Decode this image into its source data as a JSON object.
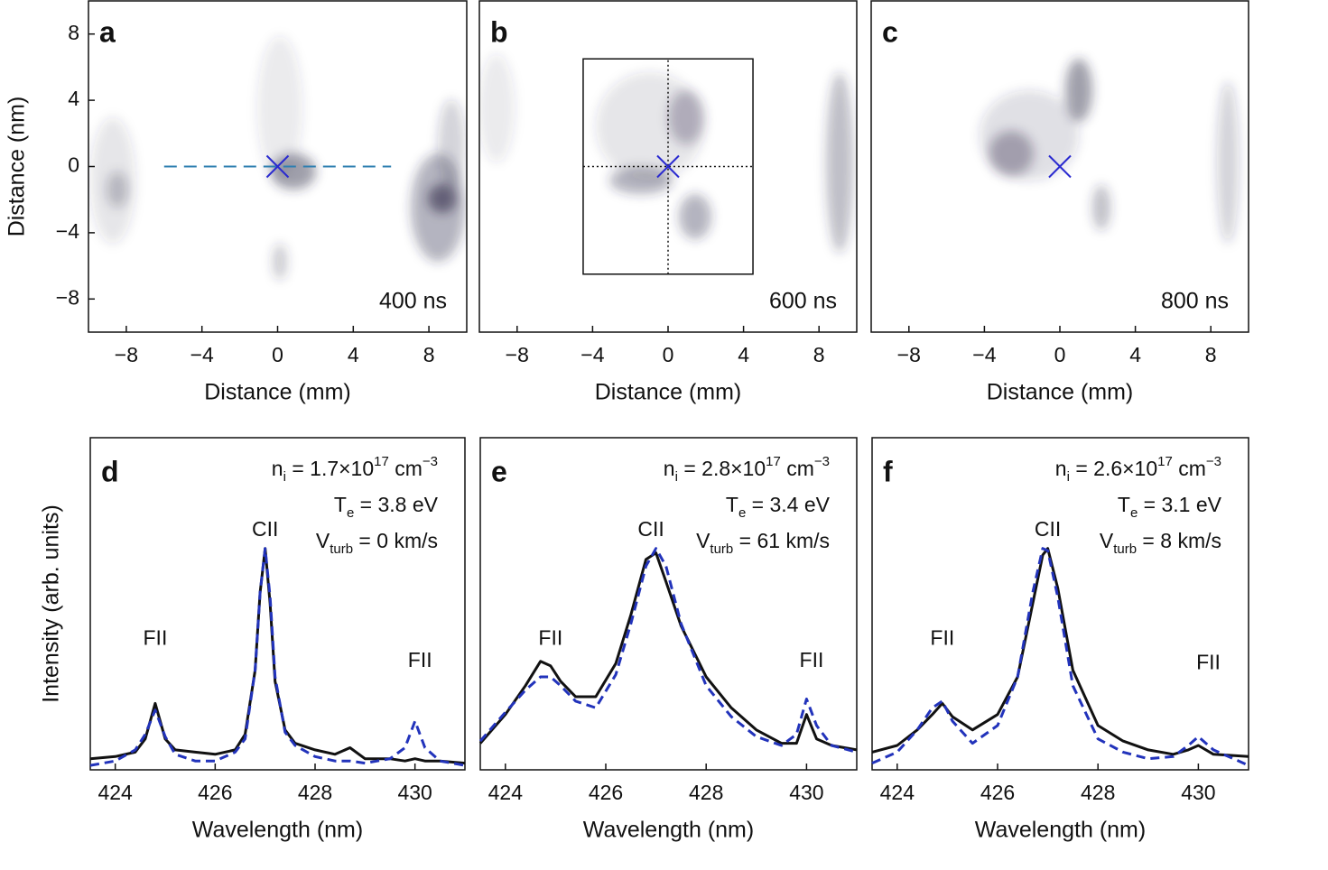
{
  "chart_data": [
    {
      "type": "image",
      "panel_label": "a",
      "time_label": "400 ns",
      "xlabel": "Distance (mm)",
      "ylabel": "Distance (nm)",
      "xlim": [
        -10,
        10
      ],
      "ylim": [
        -10,
        10
      ],
      "xticks": [
        {
          "value": -8,
          "label": "−8"
        },
        {
          "value": -4,
          "label": "−4"
        },
        0,
        4,
        8
      ],
      "yticks": [
        {
          "value": -8,
          "label": "−8"
        },
        {
          "value": -4,
          "label": "−4"
        },
        0,
        4,
        8
      ],
      "marker": {
        "x": 0,
        "y": 0,
        "color": "#2a2ad0"
      },
      "guide": {
        "x": [
          -6,
          6
        ],
        "y": [
          0,
          0
        ],
        "color": "#2f7fb0"
      }
    },
    {
      "type": "image",
      "panel_label": "b",
      "time_label": "600 ns",
      "xlabel": "Distance (mm)",
      "xlim": [
        -10,
        10
      ],
      "ylim": [
        -10,
        10
      ],
      "xticks": [
        {
          "value": -8,
          "label": "−8"
        },
        {
          "value": -4,
          "label": "−4"
        },
        0,
        4,
        8
      ],
      "marker": {
        "x": 0,
        "y": 0,
        "color": "#2a2ad0"
      },
      "box": {
        "x": [
          -4.5,
          4.5
        ],
        "y": [
          -6.5,
          6.5
        ]
      },
      "crosshair": true
    },
    {
      "type": "image",
      "panel_label": "c",
      "time_label": "800 ns",
      "xlabel": "Distance (mm)",
      "xlim": [
        -10,
        10
      ],
      "ylim": [
        -10,
        10
      ],
      "xticks": [
        {
          "value": -8,
          "label": "−8"
        },
        {
          "value": -4,
          "label": "−4"
        },
        0,
        4,
        8
      ],
      "marker": {
        "x": 0,
        "y": 0,
        "color": "#2a2ad0"
      }
    },
    {
      "type": "line",
      "panel_label": "d",
      "xlabel": "Wavelength (nm)",
      "ylabel": "Intensity (arb. units)",
      "xlim": [
        423.5,
        431
      ],
      "ylim": [
        0,
        1.5
      ],
      "xticks": [
        424,
        426,
        428,
        430
      ],
      "params": [
        [
          {
            "t": "n"
          },
          {
            "t": "i",
            "pos": "sub"
          },
          {
            "t": " = 1.7×10"
          },
          {
            "t": "17",
            "pos": "sup"
          },
          {
            "t": " cm"
          },
          {
            "t": "−3",
            "pos": "sup"
          }
        ],
        [
          {
            "t": "T"
          },
          {
            "t": "e",
            "pos": "sub"
          },
          {
            "t": " = 3.8 eV"
          }
        ],
        [
          {
            "t": "V"
          },
          {
            "t": "turb",
            "pos": "sub"
          },
          {
            "t": " = 0 km/s"
          }
        ]
      ],
      "peak_labels": [
        {
          "text": "FII",
          "x": 424.8,
          "y": 0.59
        },
        {
          "text": "CII",
          "x": 427.0,
          "y": 1.08
        },
        {
          "text": "FII",
          "x": 430.1,
          "y": 0.49
        }
      ],
      "x": [
        423.5,
        424,
        424.4,
        424.6,
        424.8,
        425,
        425.2,
        425.6,
        426,
        426.4,
        426.6,
        426.8,
        426.9,
        427,
        427.1,
        427.2,
        427.4,
        427.6,
        428,
        428.4,
        428.7,
        429,
        429.5,
        429.8,
        430,
        430.2,
        430.5,
        431
      ],
      "series": [
        {
          "color": "#111111",
          "values": [
            0.05,
            0.06,
            0.08,
            0.14,
            0.3,
            0.14,
            0.09,
            0.08,
            0.07,
            0.09,
            0.16,
            0.45,
            0.8,
            1.0,
            0.75,
            0.4,
            0.18,
            0.12,
            0.09,
            0.07,
            0.1,
            0.05,
            0.05,
            0.04,
            0.05,
            0.04,
            0.04,
            0.03
          ]
        },
        {
          "color": "#2233bb",
          "dashed": true,
          "values": [
            0.02,
            0.04,
            0.09,
            0.16,
            0.27,
            0.15,
            0.07,
            0.04,
            0.04,
            0.08,
            0.14,
            0.45,
            0.8,
            1.0,
            0.78,
            0.42,
            0.17,
            0.11,
            0.06,
            0.04,
            0.04,
            0.03,
            0.05,
            0.1,
            0.22,
            0.1,
            0.04,
            0.02
          ]
        }
      ]
    },
    {
      "type": "line",
      "panel_label": "e",
      "xlabel": "Wavelength (nm)",
      "xlim": [
        423.5,
        431
      ],
      "ylim": [
        0,
        1.5
      ],
      "xticks": [
        424,
        426,
        428,
        430
      ],
      "params": [
        [
          {
            "t": "n"
          },
          {
            "t": "i",
            "pos": "sub"
          },
          {
            "t": " = 2.8×10"
          },
          {
            "t": "17",
            "pos": "sup"
          },
          {
            "t": " cm"
          },
          {
            "t": "−3",
            "pos": "sup"
          }
        ],
        [
          {
            "t": "T"
          },
          {
            "t": "e",
            "pos": "sub"
          },
          {
            "t": " = 3.4 eV"
          }
        ],
        [
          {
            "t": "V"
          },
          {
            "t": "turb",
            "pos": "sub"
          },
          {
            "t": " = 61 km/s"
          }
        ]
      ],
      "peak_labels": [
        {
          "text": "FII",
          "x": 424.9,
          "y": 0.59
        },
        {
          "text": "CII",
          "x": 426.9,
          "y": 1.08
        },
        {
          "text": "FII",
          "x": 430.1,
          "y": 0.49
        }
      ],
      "x": [
        423.5,
        424,
        424.4,
        424.7,
        424.9,
        425.1,
        425.4,
        425.8,
        426.2,
        426.5,
        426.8,
        427,
        427.2,
        427.5,
        428,
        428.5,
        429,
        429.5,
        429.8,
        430,
        430.2,
        430.5,
        431
      ],
      "series": [
        {
          "color": "#111111",
          "values": [
            0.12,
            0.25,
            0.38,
            0.49,
            0.47,
            0.4,
            0.33,
            0.33,
            0.48,
            0.7,
            0.95,
            0.98,
            0.85,
            0.65,
            0.42,
            0.28,
            0.18,
            0.12,
            0.12,
            0.25,
            0.14,
            0.11,
            0.09
          ]
        },
        {
          "color": "#2233bb",
          "dashed": true,
          "values": [
            0.13,
            0.26,
            0.36,
            0.42,
            0.42,
            0.38,
            0.31,
            0.28,
            0.43,
            0.66,
            0.92,
            1.0,
            0.92,
            0.66,
            0.38,
            0.24,
            0.15,
            0.11,
            0.16,
            0.32,
            0.2,
            0.11,
            0.08
          ]
        }
      ]
    },
    {
      "type": "line",
      "panel_label": "f",
      "xlabel": "Wavelength (nm)",
      "xlim": [
        423.5,
        431
      ],
      "ylim": [
        0,
        1.5
      ],
      "xticks": [
        424,
        426,
        428,
        430
      ],
      "params": [
        [
          {
            "t": "n"
          },
          {
            "t": "i",
            "pos": "sub"
          },
          {
            "t": " = 2.6×10"
          },
          {
            "t": "17",
            "pos": "sup"
          },
          {
            "t": " cm"
          },
          {
            "t": "−3",
            "pos": "sup"
          }
        ],
        [
          {
            "t": "T"
          },
          {
            "t": "e",
            "pos": "sub"
          },
          {
            "t": " = 3.1 eV"
          }
        ],
        [
          {
            "t": "V"
          },
          {
            "t": "turb",
            "pos": "sub"
          },
          {
            "t": " = 8 km/s"
          }
        ]
      ],
      "peak_labels": [
        {
          "text": "FII",
          "x": 424.9,
          "y": 0.59
        },
        {
          "text": "CII",
          "x": 427.0,
          "y": 1.08
        },
        {
          "text": "FII",
          "x": 430.2,
          "y": 0.48
        }
      ],
      "x": [
        423.5,
        424,
        424.4,
        424.7,
        424.9,
        425.1,
        425.5,
        426,
        426.4,
        426.7,
        426.9,
        427,
        427.2,
        427.5,
        428,
        428.5,
        429,
        429.5,
        429.8,
        430,
        430.3,
        431
      ],
      "series": [
        {
          "color": "#111111",
          "values": [
            0.08,
            0.11,
            0.18,
            0.25,
            0.3,
            0.24,
            0.18,
            0.25,
            0.42,
            0.75,
            0.97,
            1.0,
            0.82,
            0.45,
            0.2,
            0.13,
            0.09,
            0.07,
            0.09,
            0.11,
            0.07,
            0.06
          ]
        },
        {
          "color": "#2233bb",
          "dashed": true,
          "values": [
            0.03,
            0.08,
            0.18,
            0.28,
            0.31,
            0.22,
            0.12,
            0.2,
            0.42,
            0.8,
            1.0,
            0.99,
            0.78,
            0.38,
            0.14,
            0.08,
            0.05,
            0.06,
            0.11,
            0.15,
            0.09,
            0.02
          ]
        }
      ]
    }
  ]
}
